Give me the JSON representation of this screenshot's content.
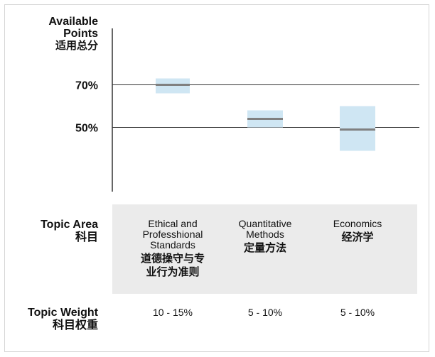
{
  "y_axis_label": {
    "en": "Available Points",
    "zh": "适用总分"
  },
  "rows": {
    "topic_area": {
      "en": "Topic Area",
      "zh": "科目"
    },
    "topic_weight": {
      "en": "Topic Weight",
      "zh": "科目权重"
    }
  },
  "colors": {
    "range_fill": "#cfe6f3",
    "marker": "#808080",
    "band": "#ebebeb",
    "reference_line": "#333333"
  },
  "chart_data": {
    "type": "bar",
    "title": "",
    "ylabel": "Available Points 适用总分",
    "xlabel": "Topic Area 科目",
    "ylim": [
      0,
      100
    ],
    "ticks": [
      {
        "value": 70,
        "label": "70%"
      },
      {
        "value": 50,
        "label": "50%"
      }
    ],
    "categories": [
      {
        "en": "Ethical and Professhional Standards",
        "zh": "道德操守与专业行为准则",
        "weight": "10 - 15%"
      },
      {
        "en": "Quantitative Methods",
        "zh": "定量方法",
        "weight": "5 - 10%"
      },
      {
        "en": "Economics",
        "zh": "经济学",
        "weight": "5 - 10%"
      }
    ],
    "series": [
      {
        "low": [
          66,
          50,
          39
        ],
        "high": [
          73,
          58,
          60
        ],
        "marker": [
          70,
          54,
          49
        ]
      }
    ],
    "grid": false,
    "legend": "none"
  }
}
